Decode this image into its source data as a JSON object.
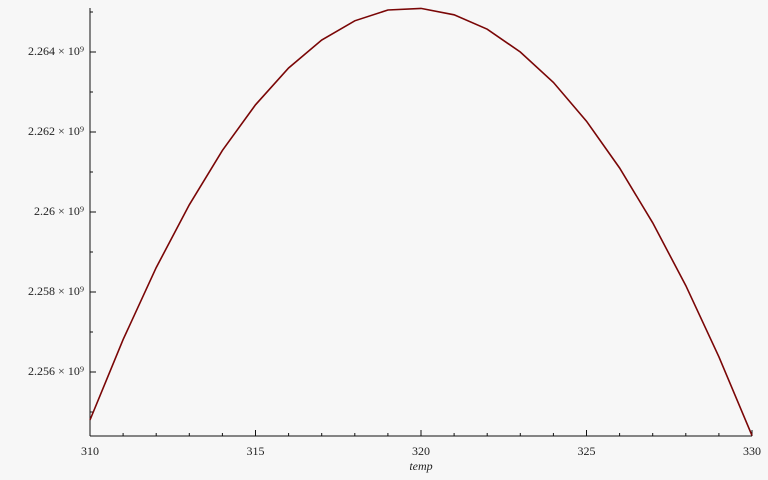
{
  "chart_data": {
    "type": "line",
    "x_label": "temp",
    "x": [
      310,
      311,
      312,
      313,
      314,
      315,
      316,
      317,
      318,
      319,
      320,
      321,
      322,
      323,
      324,
      325,
      326,
      327,
      328,
      329,
      330
    ],
    "series": [
      {
        "color": "#7a0606",
        "values": [
          2254800000,
          2256810000,
          2258610000,
          2260180000,
          2261540000,
          2262680000,
          2263600000,
          2264300000,
          2264780000,
          2265050000,
          2265090000,
          2264930000,
          2264570000,
          2264000000,
          2263240000,
          2262270000,
          2261100000,
          2259730000,
          2258160000,
          2256380000,
          2254410000
        ]
      }
    ],
    "xlim": [
      310,
      330
    ],
    "xticks": [
      310,
      315,
      320,
      325,
      330
    ],
    "ylim": [
      2254400000,
      2265100000
    ],
    "yticks": [
      {
        "value": 2256000000,
        "label": "2.256 × 10⁹"
      },
      {
        "value": 2258000000,
        "label": "2.258 × 10⁹"
      },
      {
        "value": 2260000000,
        "label": "2.26 × 10⁹"
      },
      {
        "value": 2262000000,
        "label": "2.262 × 10⁹"
      },
      {
        "value": 2264000000,
        "label": "2.264 × 10⁹"
      }
    ],
    "grid": false
  }
}
